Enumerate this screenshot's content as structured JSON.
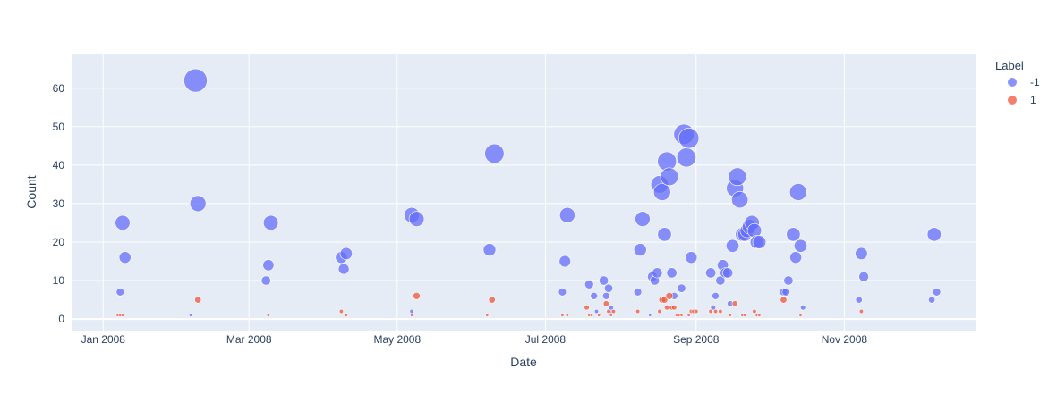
{
  "chart_data": {
    "type": "scatter",
    "xlabel": "Date",
    "ylabel": "Count",
    "legend_title": "Label",
    "legend_position": "right",
    "grid": true,
    "colors": {
      "background": "#e5ecf6",
      "grid": "#ffffff",
      "text": "#2a3f5f"
    },
    "xlim": [
      "2007-12-19",
      "2008-12-25"
    ],
    "ylim": [
      -3,
      69
    ],
    "x_ticks": [
      {
        "date": "2008-01-01",
        "label": "Jan 2008"
      },
      {
        "date": "2008-03-01",
        "label": "Mar 2008"
      },
      {
        "date": "2008-05-01",
        "label": "May 2008"
      },
      {
        "date": "2008-07-01",
        "label": "Jul 2008"
      },
      {
        "date": "2008-09-01",
        "label": "Sep 2008"
      },
      {
        "date": "2008-11-01",
        "label": "Nov 2008"
      }
    ],
    "y_ticks": [
      0,
      10,
      20,
      30,
      40,
      50,
      60
    ],
    "series": [
      {
        "name": "-1",
        "color": "#636efa",
        "points": [
          [
            "2008-01-08",
            7
          ],
          [
            "2008-01-09",
            25
          ],
          [
            "2008-01-10",
            16
          ],
          [
            "2008-02-06",
            1
          ],
          [
            "2008-02-08",
            62
          ],
          [
            "2008-02-09",
            30
          ],
          [
            "2008-03-08",
            10
          ],
          [
            "2008-03-09",
            14
          ],
          [
            "2008-03-10",
            25
          ],
          [
            "2008-04-08",
            16
          ],
          [
            "2008-04-09",
            13
          ],
          [
            "2008-04-10",
            17
          ],
          [
            "2008-05-07",
            2
          ],
          [
            "2008-05-07",
            27
          ],
          [
            "2008-05-09",
            26
          ],
          [
            "2008-06-08",
            18
          ],
          [
            "2008-06-10",
            43
          ],
          [
            "2008-07-08",
            7
          ],
          [
            "2008-07-09",
            15
          ],
          [
            "2008-07-10",
            27
          ],
          [
            "2008-07-19",
            9
          ],
          [
            "2008-07-21",
            6
          ],
          [
            "2008-07-22",
            2
          ],
          [
            "2008-07-25",
            10
          ],
          [
            "2008-07-26",
            6
          ],
          [
            "2008-07-27",
            8
          ],
          [
            "2008-07-28",
            2
          ],
          [
            "2008-07-28",
            3
          ],
          [
            "2008-08-08",
            7
          ],
          [
            "2008-08-09",
            18
          ],
          [
            "2008-08-10",
            26
          ],
          [
            "2008-08-13",
            1
          ],
          [
            "2008-08-14",
            11
          ],
          [
            "2008-08-15",
            10
          ],
          [
            "2008-08-16",
            12
          ],
          [
            "2008-08-17",
            35
          ],
          [
            "2008-08-18",
            33
          ],
          [
            "2008-08-19",
            22
          ],
          [
            "2008-08-20",
            41
          ],
          [
            "2008-08-21",
            37
          ],
          [
            "2008-08-22",
            12
          ],
          [
            "2008-08-23",
            6
          ],
          [
            "2008-08-26",
            8
          ],
          [
            "2008-08-27",
            48
          ],
          [
            "2008-08-28",
            42
          ],
          [
            "2008-08-29",
            47
          ],
          [
            "2008-08-30",
            16
          ],
          [
            "2008-09-07",
            12
          ],
          [
            "2008-09-08",
            3
          ],
          [
            "2008-09-09",
            6
          ],
          [
            "2008-09-11",
            10
          ],
          [
            "2008-09-12",
            14
          ],
          [
            "2008-09-13",
            12
          ],
          [
            "2008-09-14",
            12
          ],
          [
            "2008-09-15",
            4
          ],
          [
            "2008-09-16",
            19
          ],
          [
            "2008-09-17",
            34
          ],
          [
            "2008-09-18",
            37
          ],
          [
            "2008-09-19",
            31
          ],
          [
            "2008-09-20",
            22
          ],
          [
            "2008-09-21",
            22
          ],
          [
            "2008-09-22",
            23
          ],
          [
            "2008-09-23",
            24
          ],
          [
            "2008-09-24",
            25
          ],
          [
            "2008-09-25",
            23
          ],
          [
            "2008-09-26",
            20
          ],
          [
            "2008-09-27",
            20
          ],
          [
            "2008-10-07",
            7
          ],
          [
            "2008-10-08",
            7
          ],
          [
            "2008-10-09",
            10
          ],
          [
            "2008-10-11",
            22
          ],
          [
            "2008-10-12",
            16
          ],
          [
            "2008-10-13",
            33
          ],
          [
            "2008-10-14",
            19
          ],
          [
            "2008-10-15",
            3
          ],
          [
            "2008-11-07",
            5
          ],
          [
            "2008-11-08",
            17
          ],
          [
            "2008-11-09",
            11
          ],
          [
            "2008-12-07",
            5
          ],
          [
            "2008-12-08",
            22
          ],
          [
            "2008-12-09",
            7
          ]
        ]
      },
      {
        "name": "1",
        "color": "#ef553b",
        "points": [
          [
            "2008-01-07",
            1
          ],
          [
            "2008-01-08",
            1
          ],
          [
            "2008-01-09",
            1
          ],
          [
            "2008-02-09",
            5
          ],
          [
            "2008-03-09",
            1
          ],
          [
            "2008-04-08",
            2
          ],
          [
            "2008-04-10",
            1
          ],
          [
            "2008-05-07",
            1
          ],
          [
            "2008-05-09",
            6
          ],
          [
            "2008-06-07",
            1
          ],
          [
            "2008-06-09",
            5
          ],
          [
            "2008-07-08",
            1
          ],
          [
            "2008-07-10",
            1
          ],
          [
            "2008-07-18",
            3
          ],
          [
            "2008-07-19",
            1
          ],
          [
            "2008-07-20",
            1
          ],
          [
            "2008-07-23",
            1
          ],
          [
            "2008-07-26",
            4
          ],
          [
            "2008-07-27",
            2
          ],
          [
            "2008-07-28",
            1
          ],
          [
            "2008-07-29",
            2
          ],
          [
            "2008-08-08",
            2
          ],
          [
            "2008-08-17",
            2
          ],
          [
            "2008-08-18",
            5
          ],
          [
            "2008-08-19",
            5
          ],
          [
            "2008-08-20",
            3
          ],
          [
            "2008-08-21",
            6
          ],
          [
            "2008-08-22",
            3
          ],
          [
            "2008-08-23",
            3
          ],
          [
            "2008-08-24",
            1
          ],
          [
            "2008-08-25",
            1
          ],
          [
            "2008-08-26",
            1
          ],
          [
            "2008-08-29",
            1
          ],
          [
            "2008-08-30",
            2
          ],
          [
            "2008-08-31",
            2
          ],
          [
            "2008-09-01",
            2
          ],
          [
            "2008-09-07",
            2
          ],
          [
            "2008-09-09",
            2
          ],
          [
            "2008-09-11",
            2
          ],
          [
            "2008-09-15",
            1
          ],
          [
            "2008-09-17",
            4
          ],
          [
            "2008-09-20",
            1
          ],
          [
            "2008-09-21",
            1
          ],
          [
            "2008-09-25",
            2
          ],
          [
            "2008-09-26",
            1
          ],
          [
            "2008-09-27",
            1
          ],
          [
            "2008-10-07",
            5
          ],
          [
            "2008-10-14",
            1
          ],
          [
            "2008-11-08",
            2
          ]
        ]
      }
    ]
  }
}
